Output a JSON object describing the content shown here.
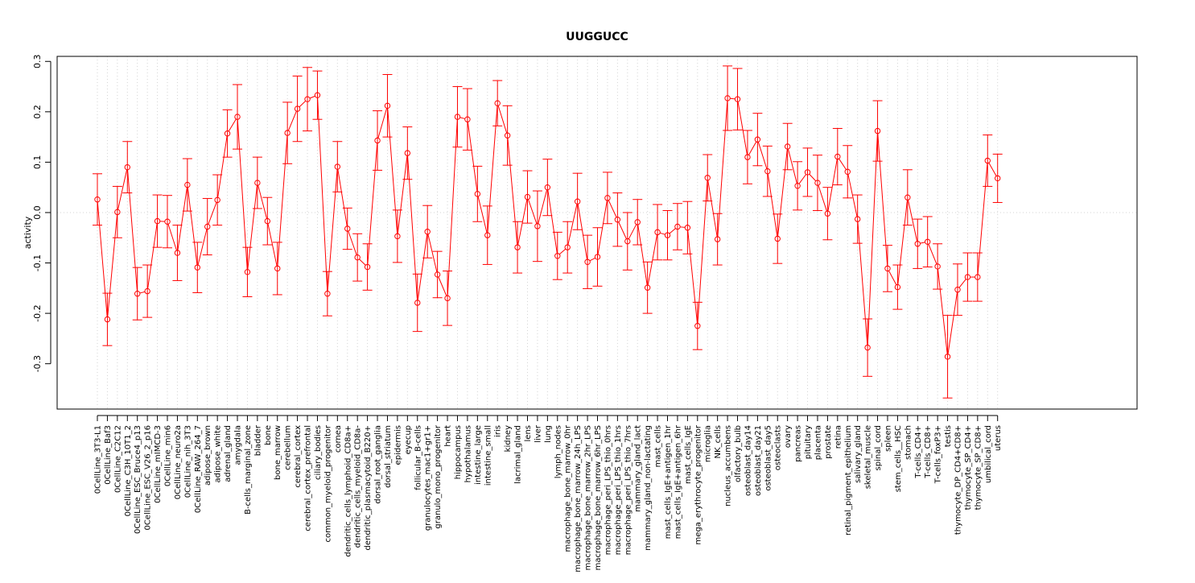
{
  "chart_data": {
    "type": "line",
    "title": "UUGGUCC",
    "xlabel": "",
    "ylabel": "activity",
    "ylim": [
      -0.39,
      0.31
    ],
    "yticks": [
      -0.3,
      -0.2,
      -0.1,
      0.0,
      0.1,
      0.2,
      0.3
    ],
    "ytick_labels": [
      "-0.3",
      "-0.2",
      "-0.1",
      "0.0",
      "0.1",
      "0.2",
      "0.3"
    ],
    "reference_line": 0.0,
    "grid": "vertical dotted",
    "colors": {
      "series": "#ff0000",
      "grid": "#d3d3d3",
      "axis": "#000000"
    },
    "categories": [
      "0CellLine_3T3-L1",
      "0CellLine_Baf3",
      "0CellLine_C2C12",
      "0CellLine_C3H_10T1_2",
      "0CellLine_ESC_Bruce4_p13",
      "0CellLine_ESC_V26_2_p16",
      "0CellLine_mIMCD-3",
      "0CellLine_min6",
      "0CellLine_neuro2a",
      "0CellLine_nih_3T3",
      "0CellLine_RAW_264_7",
      "adipose_brown",
      "adipose_white",
      "adrenal_gland",
      "amygdala",
      "B-cells_marginal_zone",
      "bladder",
      "bone",
      "bone_marrow",
      "cerebellum",
      "cerebral_cortex",
      "cerebral_cortex_prefrontal",
      "ciliary_bodies",
      "common_myeloid_progenitor",
      "cornea",
      "dendritic_cells_lymphoid_CD8a+",
      "dendritic_cells_myeloid_CD8a-",
      "dendritic_plasmacytoid_B220+",
      "dorsal_root_ganglia",
      "dorsal_striatum",
      "epidermis",
      "eyecup",
      "follicular_B-cells",
      "granulocytes_mac1+gr1+",
      "granulo_mono_progenitor",
      "heart",
      "hippocampus",
      "hypothalamus",
      "intestine_large",
      "intestine_small",
      "iris",
      "kidney",
      "lacrimal_gland",
      "lens",
      "liver",
      "lung",
      "lymph_nodes",
      "macrophage_bone_marrow_0hr",
      "macrophage_bone_marrow_24h_LPS",
      "macrophage_bone_marrow_2hr_LPS",
      "macrophage_bone_marrow_6hr_LPS",
      "macrophage_peri_LPS_thio_0hrs",
      "macrophage_peri_LPS_thio_1hrs",
      "macrophage_peri_LPS_thio_7hrs",
      "mammary_gland_lact",
      "mammary_gland_non-lactating",
      "mast_cells",
      "mast_cells_IgE+antigen_1hr",
      "mast_cells_IgE+antigen_6hr",
      "mast_cells_IgE",
      "mega_erythrocyte_progenitor",
      "microglia",
      "NK_cells",
      "nucleus_accumbens",
      "olfactory_bulb",
      "osteoblast_day14",
      "osteoblast_day21",
      "osteoblast_day5",
      "osteoclasts",
      "ovary",
      "pancreas",
      "pituitary",
      "placenta",
      "prostate",
      "retina",
      "retinal_pigment_epithelium",
      "salivary_gland",
      "skeletal_muscle",
      "spinal_cord",
      "spleen",
      "stem_cells__HSC",
      "stomach",
      "T-cells_CD4+",
      "T-cells_CD8+",
      "T-cells_foxP3+",
      "testis",
      "thymocyte_DP_CD4+CD8+",
      "thymocyte_SP_CD4+",
      "thymocyte_SP_CD8+",
      "umbilical_cord",
      "uterus"
    ],
    "values": [
      0.026,
      -0.212,
      0.001,
      0.09,
      -0.161,
      -0.156,
      -0.017,
      -0.018,
      -0.08,
      0.055,
      -0.109,
      -0.028,
      0.025,
      0.157,
      0.19,
      -0.118,
      0.059,
      -0.017,
      -0.111,
      0.158,
      0.206,
      0.225,
      0.233,
      -0.161,
      0.091,
      -0.032,
      -0.089,
      -0.108,
      0.143,
      0.212,
      -0.047,
      0.118,
      -0.179,
      -0.038,
      -0.123,
      -0.17,
      0.19,
      0.185,
      0.037,
      -0.045,
      0.217,
      0.153,
      -0.069,
      0.031,
      -0.027,
      0.05,
      -0.086,
      -0.069,
      0.022,
      -0.098,
      -0.088,
      0.029,
      -0.014,
      -0.057,
      -0.019,
      -0.149,
      -0.039,
      -0.045,
      -0.028,
      -0.03,
      -0.225,
      0.069,
      -0.053,
      0.227,
      0.225,
      0.11,
      0.145,
      0.082,
      -0.052,
      0.131,
      0.053,
      0.08,
      0.059,
      -0.002,
      0.111,
      0.081,
      -0.013,
      -0.268,
      0.162,
      -0.111,
      -0.148,
      0.03,
      -0.062,
      -0.058,
      -0.107,
      -0.286,
      -0.153,
      -0.128,
      -0.128,
      0.103,
      0.068
    ],
    "errors": [
      0.051,
      0.052,
      0.051,
      0.051,
      0.052,
      0.052,
      0.052,
      0.052,
      0.055,
      0.052,
      0.05,
      0.056,
      0.05,
      0.047,
      0.064,
      0.049,
      0.051,
      0.047,
      0.052,
      0.061,
      0.065,
      0.063,
      0.048,
      0.044,
      0.05,
      0.041,
      0.047,
      0.046,
      0.059,
      0.062,
      0.052,
      0.052,
      0.057,
      0.052,
      0.046,
      0.054,
      0.06,
      0.061,
      0.055,
      0.058,
      0.045,
      0.059,
      0.051,
      0.052,
      0.07,
      0.056,
      0.047,
      0.051,
      0.056,
      0.053,
      0.058,
      0.051,
      0.053,
      0.057,
      0.045,
      0.051,
      0.055,
      0.049,
      0.046,
      0.052,
      0.047,
      0.046,
      0.051,
      0.064,
      0.061,
      0.053,
      0.052,
      0.05,
      0.049,
      0.046,
      0.048,
      0.048,
      0.055,
      0.052,
      0.056,
      0.052,
      0.048,
      0.057,
      0.06,
      0.046,
      0.044,
      0.055,
      0.049,
      0.05,
      0.045,
      0.082,
      0.051,
      0.048,
      0.048,
      0.051,
      0.048
    ]
  }
}
